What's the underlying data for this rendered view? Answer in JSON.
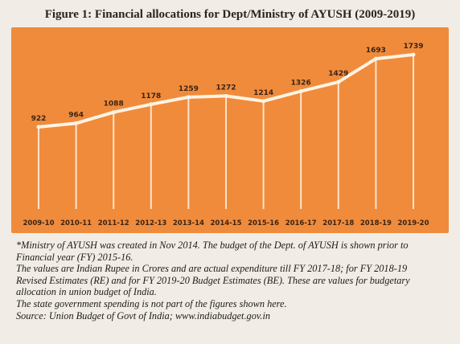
{
  "figure": {
    "title": "Figure 1: Financial allocations for Dept/Ministry of AYUSH (2009-2019)"
  },
  "chart_data": {
    "type": "line",
    "title": "Figure 1: Financial allocations for Dept/Ministry of AYUSH (2009-2019)",
    "xlabel": "",
    "ylabel": "",
    "categories": [
      "2009-10",
      "2010-11",
      "2011-12",
      "2012-13",
      "2013-14",
      "2014-15",
      "2015-16",
      "2016-17",
      "2017-18",
      "2018-19",
      "2019-20"
    ],
    "series": [
      {
        "values": [
          922,
          964,
          1088,
          1178,
          1259,
          1272,
          1214,
          1326,
          1429,
          1693,
          1739
        ]
      }
    ],
    "ylim": [
      0,
      1800
    ],
    "grid": false,
    "legend": "none",
    "colors": {
      "background": "#f08b3c",
      "line": "#fff3e3",
      "label": "#3a2416"
    }
  },
  "notes": [
    "*Ministry of AYUSH was created in Nov 2014. The budget of the Dept. of AYUSH is shown prior to",
    "Financial year (FY) 2015-16.",
    "The values are Indian Rupee in Crores and are actual expenditure till FY 2017-18; for FY 2018-19",
    "Revised Estimates (RE) and for FY 2019-20 Budget Estimates (BE). These are values for budgetary",
    "allocation in union budget of India.",
    "The state government spending is not part of the figures shown here.",
    "Source: Union Budget of Govt of India; www.indiabudget.gov.in"
  ]
}
